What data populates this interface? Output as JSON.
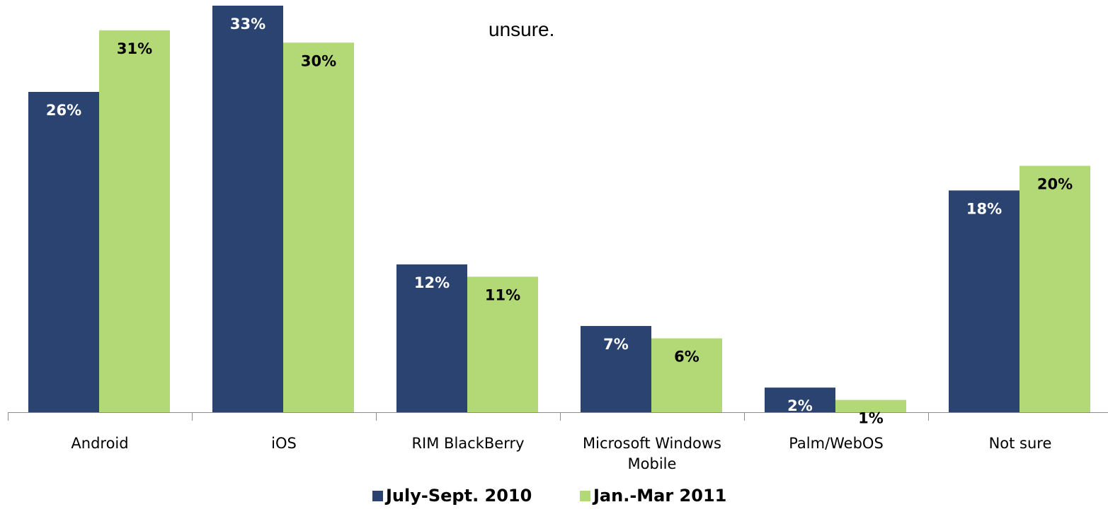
{
  "header_fragment": "unsure.",
  "legend": [
    {
      "label": "July-Sept. 2010",
      "color": "#2a4371"
    },
    {
      "label": "Jan.-Mar 2011",
      "color": "#b3d977"
    }
  ],
  "chart_data": {
    "type": "bar",
    "categories": [
      "Android",
      "iOS",
      "RIM BlackBerry",
      "Microsoft Windows Mobile",
      "Palm/WebOS",
      "Not sure"
    ],
    "series": [
      {
        "name": "July-Sept. 2010",
        "values": [
          26,
          33,
          12,
          7,
          2,
          18
        ],
        "labels": [
          "26%",
          "33%",
          "12%",
          "7%",
          "2%",
          "18%"
        ],
        "color": "#2a4371"
      },
      {
        "name": "Jan.-Mar 2011",
        "values": [
          31,
          30,
          11,
          6,
          1,
          20
        ],
        "labels": [
          "31%",
          "30%",
          "11%",
          "6%",
          "1%",
          "20%"
        ],
        "color": "#b3d977"
      }
    ],
    "ylim": [
      0,
      33
    ]
  }
}
